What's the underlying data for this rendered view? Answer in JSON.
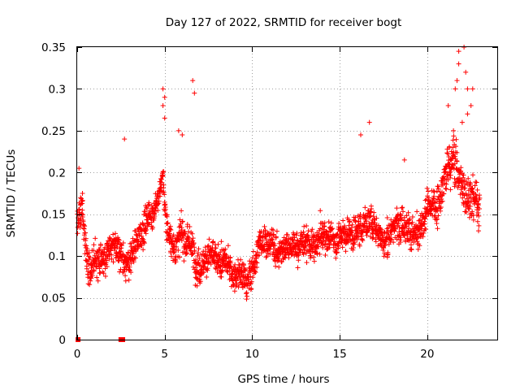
{
  "chart_data": {
    "type": "scatter",
    "title": "Day 127 of 2022, SRMTID for receiver bogt",
    "xlabel": "GPS time / hours",
    "ylabel": "SRMTID / TECUs",
    "xlim": [
      0,
      24
    ],
    "ylim": [
      0,
      0.35
    ],
    "x_ticks": [
      0,
      5,
      10,
      15,
      20
    ],
    "x_tick_labels": [
      "0",
      "5",
      "10",
      "15",
      "20"
    ],
    "y_ticks": [
      0,
      0.05,
      0.1,
      0.15,
      0.2,
      0.25,
      0.3,
      0.35
    ],
    "y_tick_labels": [
      "0",
      "0.05",
      "0.1",
      "0.15",
      "0.2",
      "0.25",
      "0.3",
      "0.35"
    ],
    "grid": true,
    "marker": "+",
    "color": "#ff0000",
    "trend": [
      [
        0.0,
        0.14
      ],
      [
        0.3,
        0.16
      ],
      [
        0.6,
        0.09
      ],
      [
        1.0,
        0.09
      ],
      [
        1.5,
        0.1
      ],
      [
        2.0,
        0.11
      ],
      [
        2.5,
        0.1
      ],
      [
        3.0,
        0.09
      ],
      [
        3.5,
        0.12
      ],
      [
        4.0,
        0.15
      ],
      [
        4.5,
        0.16
      ],
      [
        4.9,
        0.19
      ],
      [
        5.1,
        0.14
      ],
      [
        5.5,
        0.11
      ],
      [
        6.0,
        0.13
      ],
      [
        6.5,
        0.11
      ],
      [
        7.0,
        0.09
      ],
      [
        7.5,
        0.1
      ],
      [
        8.0,
        0.09
      ],
      [
        8.5,
        0.09
      ],
      [
        9.0,
        0.08
      ],
      [
        9.5,
        0.07
      ],
      [
        10.0,
        0.08
      ],
      [
        10.5,
        0.12
      ],
      [
        11.0,
        0.12
      ],
      [
        11.5,
        0.1
      ],
      [
        12.0,
        0.12
      ],
      [
        12.5,
        0.11
      ],
      [
        13.0,
        0.12
      ],
      [
        13.5,
        0.11
      ],
      [
        14.0,
        0.12
      ],
      [
        14.5,
        0.12
      ],
      [
        15.0,
        0.12
      ],
      [
        15.5,
        0.13
      ],
      [
        16.0,
        0.13
      ],
      [
        16.5,
        0.14
      ],
      [
        17.0,
        0.14
      ],
      [
        17.5,
        0.12
      ],
      [
        18.0,
        0.13
      ],
      [
        18.5,
        0.15
      ],
      [
        19.0,
        0.13
      ],
      [
        19.5,
        0.12
      ],
      [
        20.0,
        0.15
      ],
      [
        20.5,
        0.16
      ],
      [
        21.0,
        0.19
      ],
      [
        21.5,
        0.22
      ],
      [
        22.0,
        0.18
      ],
      [
        22.5,
        0.17
      ],
      [
        23.0,
        0.16
      ]
    ],
    "spikes": [
      [
        0.1,
        0.205
      ],
      [
        0.3,
        0.175
      ],
      [
        2.7,
        0.24
      ],
      [
        4.9,
        0.3
      ],
      [
        5.0,
        0.29
      ],
      [
        4.9,
        0.28
      ],
      [
        5.0,
        0.265
      ],
      [
        5.8,
        0.25
      ],
      [
        6.0,
        0.245
      ],
      [
        6.6,
        0.31
      ],
      [
        6.7,
        0.295
      ],
      [
        16.2,
        0.245
      ],
      [
        16.7,
        0.26
      ],
      [
        18.7,
        0.215
      ],
      [
        21.2,
        0.28
      ],
      [
        21.5,
        0.25
      ],
      [
        21.6,
        0.3
      ],
      [
        21.7,
        0.31
      ],
      [
        21.8,
        0.33
      ],
      [
        21.8,
        0.345
      ],
      [
        22.1,
        0.35
      ],
      [
        22.2,
        0.32
      ],
      [
        22.3,
        0.3
      ],
      [
        22.5,
        0.28
      ],
      [
        22.6,
        0.3
      ],
      [
        22.3,
        0.27
      ],
      [
        22.0,
        0.26
      ]
    ],
    "point_count": 2300,
    "zero_markers": [
      [
        0.05,
        0.0
      ],
      [
        2.5,
        0.0
      ],
      [
        2.6,
        0.0
      ]
    ]
  }
}
